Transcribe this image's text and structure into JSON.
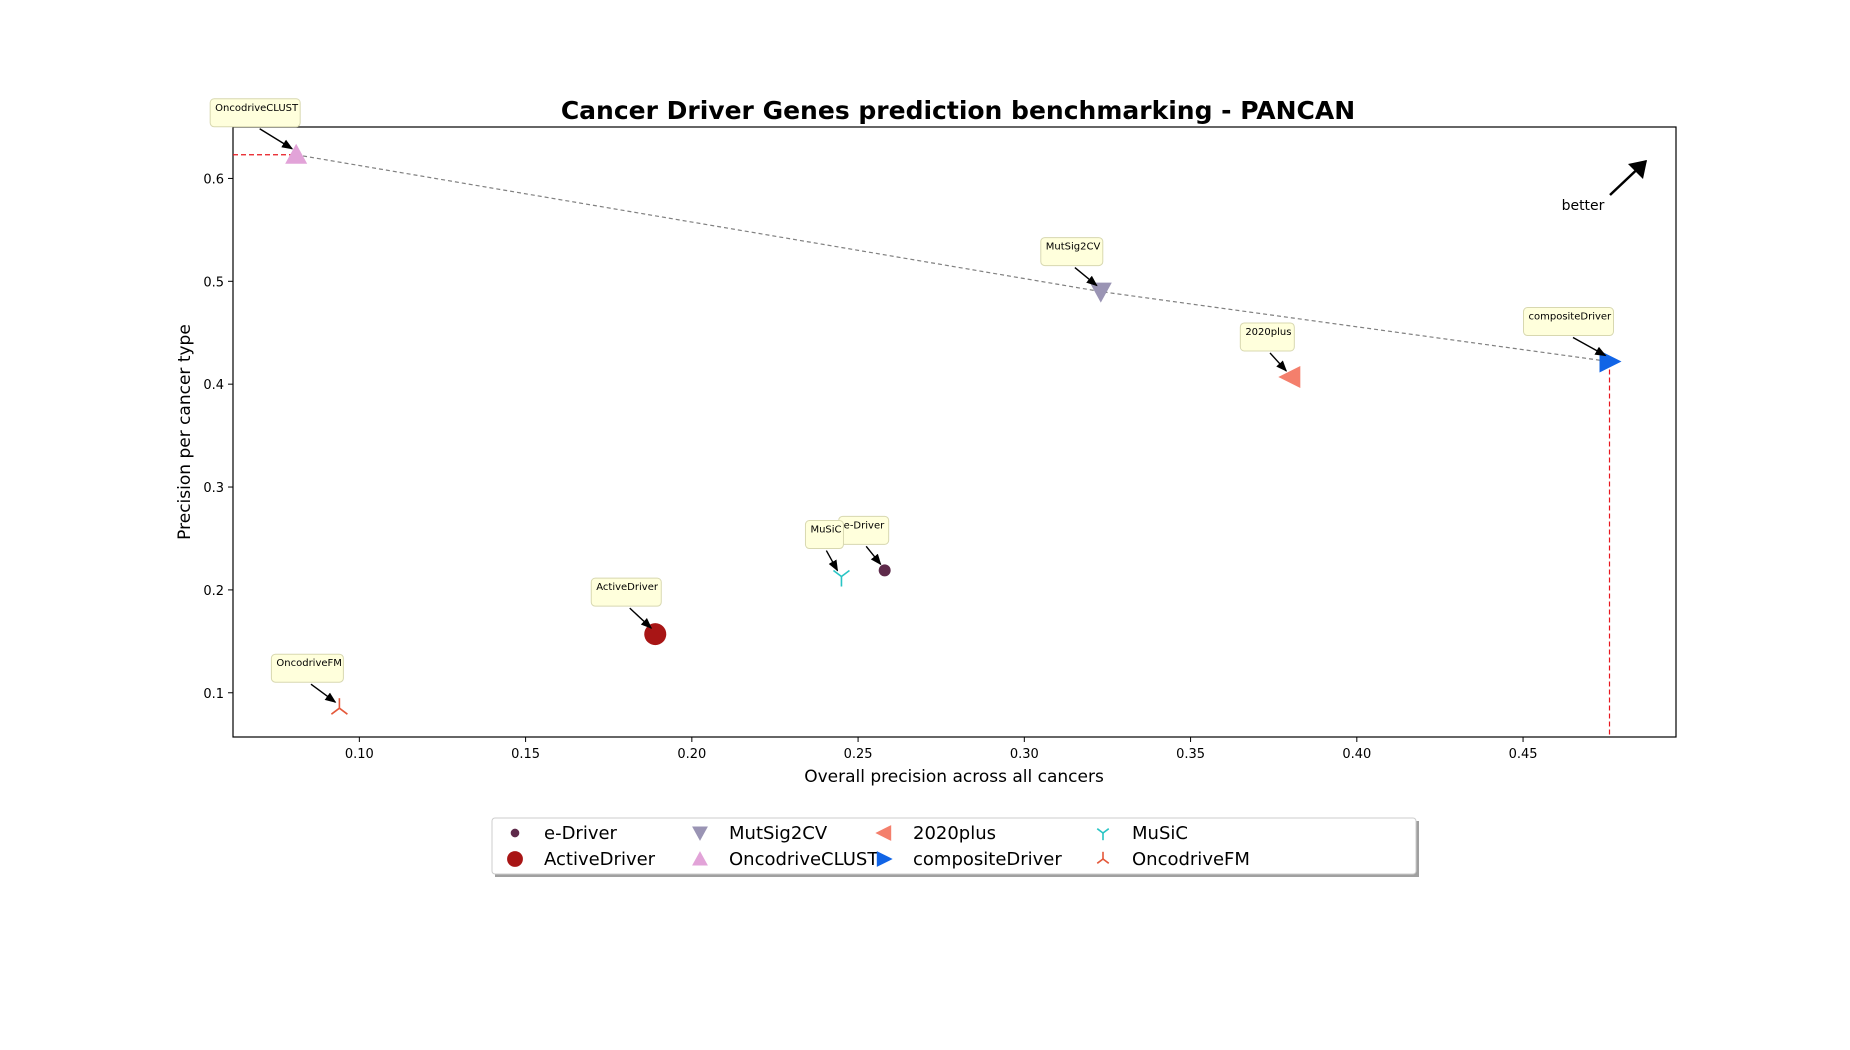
{
  "chart_data": {
    "type": "scatter",
    "title": "Cancer Driver Genes prediction benchmarking - PANCAN",
    "xlabel": "Overall precision across all cancers",
    "ylabel": "Precision per cancer type",
    "xlim": [
      0.062,
      0.496
    ],
    "ylim": [
      0.057,
      0.65
    ],
    "xticks": [
      0.1,
      0.15,
      0.2,
      0.25,
      0.3,
      0.35,
      0.4,
      0.45
    ],
    "xtick_labels": [
      "0.10",
      "0.15",
      "0.20",
      "0.25",
      "0.30",
      "0.35",
      "0.40",
      "0.45"
    ],
    "yticks": [
      0.1,
      0.2,
      0.3,
      0.4,
      0.5,
      0.6
    ],
    "ytick_labels": [
      "0.1",
      "0.2",
      "0.3",
      "0.4",
      "0.5",
      "0.6"
    ],
    "grid": false,
    "legend_position": "below",
    "better_label": "better",
    "pareto_front": [
      [
        0.081,
        0.623
      ],
      [
        0.323,
        0.49
      ],
      [
        0.476,
        0.422
      ]
    ],
    "reference_lines": {
      "x": 0.476,
      "y": 0.623
    },
    "series": [
      {
        "name": "e-Driver",
        "x": 0.258,
        "y": 0.219,
        "marker": "circle-small",
        "color": "#5e2a4a"
      },
      {
        "name": "ActiveDriver",
        "x": 0.189,
        "y": 0.157,
        "marker": "circle",
        "color": "#a81515"
      },
      {
        "name": "MutSig2CV",
        "x": 0.323,
        "y": 0.49,
        "marker": "triangle-down",
        "color": "#9a94b4"
      },
      {
        "name": "OncodriveCLUST",
        "x": 0.081,
        "y": 0.623,
        "marker": "triangle-up",
        "color": "#e2a3d8"
      },
      {
        "name": "2020plus",
        "x": 0.38,
        "y": 0.407,
        "marker": "triangle-left",
        "color": "#f47f6c"
      },
      {
        "name": "compositeDriver",
        "x": 0.476,
        "y": 0.422,
        "marker": "triangle-right",
        "color": "#1164e6"
      },
      {
        "name": "MuSiC",
        "x": 0.245,
        "y": 0.213,
        "marker": "tri-down",
        "color": "#28c4c4"
      },
      {
        "name": "OncodriveFM",
        "x": 0.094,
        "y": 0.085,
        "marker": "tri-up",
        "color": "#e4583a"
      }
    ]
  }
}
